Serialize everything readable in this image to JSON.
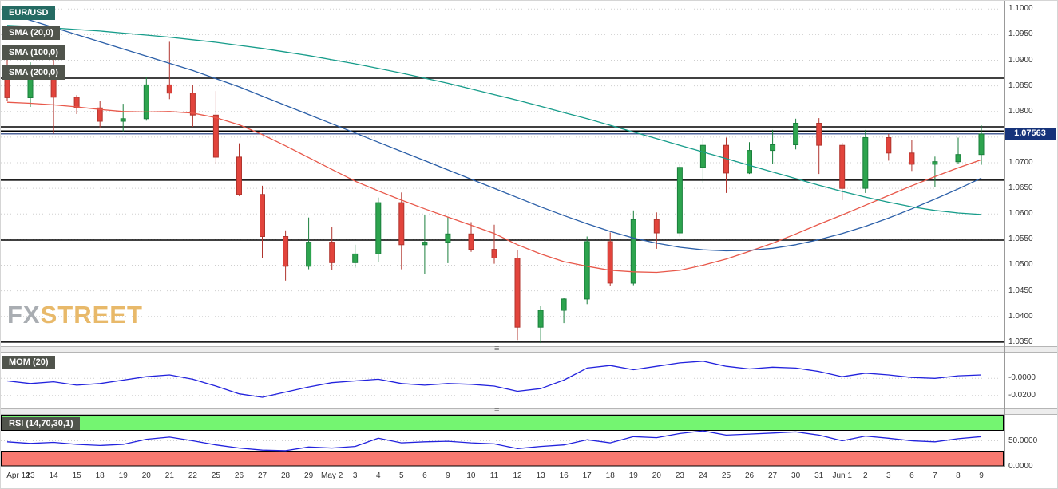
{
  "legend": {
    "symbol": "EUR/USD",
    "sma20": "SMA (20,0)",
    "sma100": "SMA (100,0)",
    "sma200": "SMA (200,0)",
    "mom": "MOM (20)",
    "rsi": "RSI (14,70,30,1)"
  },
  "watermark": {
    "fx": "FX",
    "street": "STREET"
  },
  "price_label": "1.07563",
  "colors": {
    "up": "#2da44e",
    "up_stroke": "#1a7f3c",
    "down": "#e2443c",
    "down_stroke": "#b0352e",
    "indicator_line": "#2222dd",
    "overbought_band": "#74f571",
    "oversold_band": "#f87970",
    "last_price": "#16337a",
    "symbol_badge_bg": "#256b63",
    "indicator_badge_bg": "#50544c",
    "watermark_fx": "#a9adb2",
    "watermark_street": "#e8b96a"
  },
  "chart_data": {
    "type": "candlestick",
    "title": "EUR/USD with SMA(20,0), SMA(100,0), SMA(200,0), MOM(20) and RSI(14,70,30,1)",
    "symbol": "EUR/USD",
    "x_labels": [
      "Apr 12",
      "13",
      "14",
      "15",
      "18",
      "19",
      "20",
      "21",
      "22",
      "25",
      "26",
      "27",
      "28",
      "29",
      "May 2",
      "3",
      "4",
      "5",
      "6",
      "9",
      "10",
      "11",
      "12",
      "13",
      "16",
      "17",
      "18",
      "19",
      "20",
      "23",
      "24",
      "25",
      "26",
      "27",
      "30",
      "31",
      "Jun 1",
      "2",
      "3",
      "6",
      "7",
      "8",
      "9"
    ],
    "ohlc": [
      [
        1.088,
        1.0904,
        1.0821,
        1.0827
      ],
      [
        1.0827,
        1.0896,
        1.0809,
        1.0885
      ],
      [
        1.0885,
        1.0923,
        1.0757,
        1.0828
      ],
      [
        1.0828,
        1.0832,
        1.0795,
        1.0807
      ],
      [
        1.0807,
        1.0821,
        1.0769,
        1.0781
      ],
      [
        1.0781,
        1.0815,
        1.0761,
        1.0786
      ],
      [
        1.0786,
        1.0867,
        1.0782,
        1.0852
      ],
      [
        1.0852,
        1.0936,
        1.0824,
        1.0836
      ],
      [
        1.0836,
        1.0852,
        1.077,
        1.0793
      ],
      [
        1.0793,
        1.084,
        1.0697,
        1.0711
      ],
      [
        1.0711,
        1.0738,
        1.0635,
        1.0638
      ],
      [
        1.0638,
        1.0655,
        1.0514,
        1.0556
      ],
      [
        1.0556,
        1.0568,
        1.047,
        1.0498
      ],
      [
        1.0498,
        1.0593,
        1.0492,
        1.0545
      ],
      [
        1.0545,
        1.0575,
        1.049,
        1.0505
      ],
      [
        1.0505,
        1.054,
        1.0495,
        1.0522
      ],
      [
        1.0522,
        1.0632,
        1.0507,
        1.0622
      ],
      [
        1.0622,
        1.0642,
        1.0492,
        1.054
      ],
      [
        1.054,
        1.0599,
        1.0483,
        1.0545
      ],
      [
        1.0545,
        1.0594,
        1.0504,
        1.0561
      ],
      [
        1.0561,
        1.0584,
        1.0526,
        1.0531
      ],
      [
        1.0531,
        1.0579,
        1.0503,
        1.0514
      ],
      [
        1.0514,
        1.0529,
        1.0354,
        1.0379
      ],
      [
        1.0379,
        1.042,
        1.0348,
        1.0412
      ],
      [
        1.0412,
        1.0437,
        1.0387,
        1.0434
      ],
      [
        1.0434,
        1.0556,
        1.0424,
        1.0546
      ],
      [
        1.0546,
        1.0564,
        1.0459,
        1.0465
      ],
      [
        1.0465,
        1.0607,
        1.0461,
        1.0589
      ],
      [
        1.0589,
        1.0603,
        1.0532,
        1.0563
      ],
      [
        1.0563,
        1.0697,
        1.0556,
        1.0691
      ],
      [
        1.0691,
        1.0748,
        1.0661,
        1.0734
      ],
      [
        1.0734,
        1.0749,
        1.0641,
        1.068
      ],
      [
        1.068,
        1.074,
        1.0678,
        1.0724
      ],
      [
        1.0724,
        1.0764,
        1.0697,
        1.0735
      ],
      [
        1.0735,
        1.0786,
        1.0726,
        1.0777
      ],
      [
        1.0777,
        1.0787,
        1.0678,
        1.0734
      ],
      [
        1.0734,
        1.0739,
        1.0627,
        1.065
      ],
      [
        1.065,
        1.0764,
        1.0641,
        1.0749
      ],
      [
        1.0749,
        1.0756,
        1.0704,
        1.0719
      ],
      [
        1.0719,
        1.0745,
        1.0684,
        1.0697
      ],
      [
        1.0697,
        1.0712,
        1.0653,
        1.0702
      ],
      [
        1.0702,
        1.0749,
        1.0697,
        1.0716
      ],
      [
        1.0716,
        1.0773,
        1.0696,
        1.0756
      ]
    ],
    "series": [
      {
        "name": "SMA (20,0)",
        "color": "#e8584a",
        "values": [
          1.0818,
          1.0816,
          1.0813,
          1.0809,
          1.0804,
          1.08,
          1.0799,
          1.08,
          1.0797,
          1.0788,
          1.0774,
          1.0755,
          1.0733,
          1.071,
          1.0687,
          1.0664,
          1.0645,
          1.0627,
          1.061,
          1.0594,
          1.0578,
          1.0562,
          1.054,
          1.0522,
          1.0507,
          1.0498,
          1.049,
          1.0487,
          1.0486,
          1.049,
          1.05,
          1.0512,
          1.0527,
          1.0543,
          1.0561,
          1.058,
          1.0598,
          1.0617,
          1.0636,
          1.0655,
          1.0673,
          1.069,
          1.0706
        ]
      },
      {
        "name": "SMA (100,0)",
        "color": "#2b5fa8",
        "values": [
          1.0992,
          1.0978,
          1.0964,
          1.095,
          1.0936,
          1.0922,
          1.0908,
          1.0894,
          1.088,
          1.0864,
          1.0848,
          1.083,
          1.0812,
          1.0794,
          1.0776,
          1.0758,
          1.074,
          1.0722,
          1.0704,
          1.0686,
          1.0668,
          1.065,
          1.0632,
          1.0614,
          1.0597,
          1.0581,
          1.0566,
          1.0553,
          1.0543,
          1.0535,
          1.053,
          1.0528,
          1.0529,
          1.0533,
          1.054,
          1.055,
          1.0562,
          1.0576,
          1.0592,
          1.061,
          1.0629,
          1.0649,
          1.067
        ]
      },
      {
        "name": "SMA (200,0)",
        "color": "#169c8a",
        "values": [
          1.0968,
          1.0966,
          1.0963,
          1.096,
          1.0957,
          1.0953,
          1.0949,
          1.0945,
          1.094,
          1.0935,
          1.0929,
          1.0923,
          1.0916,
          1.0909,
          1.0901,
          1.0893,
          1.0884,
          1.0875,
          1.0865,
          1.0855,
          1.0844,
          1.0833,
          1.0822,
          1.081,
          1.0798,
          1.0786,
          1.0773,
          1.076,
          1.0747,
          1.0734,
          1.0721,
          1.0708,
          1.0695,
          1.0682,
          1.0669,
          1.0656,
          1.0644,
          1.0633,
          1.0623,
          1.0614,
          1.0607,
          1.0602,
          1.0599
        ]
      }
    ],
    "horizontal_lines": [
      1.0865,
      1.077,
      1.0762,
      1.0666,
      1.0549,
      1.035
    ],
    "last_price": 1.07563,
    "y_ticks": [
      "1.1000",
      "1.0950",
      "1.0900",
      "1.0850",
      "1.0800",
      "1.0750",
      "1.0700",
      "1.0650",
      "1.0600",
      "1.0550",
      "1.0500",
      "1.0450",
      "1.0400",
      "1.0350"
    ],
    "ylim": [
      1.0342,
      1.1016
    ],
    "grid": true,
    "legend_position": "top-left",
    "mom": {
      "label": "MOM (20)",
      "values": [
        -0.003,
        -0.006,
        -0.004,
        -0.008,
        -0.006,
        -0.002,
        0.002,
        0.004,
        -0.001,
        -0.009,
        -0.018,
        -0.022,
        -0.016,
        -0.01,
        -0.005,
        -0.003,
        -0.001,
        -0.006,
        -0.008,
        -0.006,
        -0.007,
        -0.009,
        -0.015,
        -0.012,
        -0.002,
        0.012,
        0.015,
        0.01,
        0.014,
        0.018,
        0.02,
        0.014,
        0.011,
        0.013,
        0.012,
        0.008,
        0.002,
        0.006,
        0.004,
        0.001,
        0.0,
        0.003,
        0.004
      ],
      "y_ticks": [
        "-0.0000",
        "-0.0200"
      ],
      "ylim": [
        -0.035,
        0.03
      ]
    },
    "rsi": {
      "label": "RSI (14,70,30,1)",
      "values": [
        48,
        45,
        47,
        43,
        41,
        43,
        53,
        57,
        50,
        42,
        36,
        32,
        31,
        38,
        36,
        39,
        55,
        46,
        48,
        49,
        46,
        44,
        35,
        39,
        42,
        52,
        46,
        58,
        56,
        64,
        69,
        61,
        63,
        65,
        67,
        61,
        50,
        59,
        55,
        50,
        48,
        54,
        58
      ],
      "overbought": 70,
      "oversold": 30,
      "y_ticks": [
        "50.0000",
        "0.0000"
      ],
      "ylim": [
        0,
        100
      ]
    }
  }
}
